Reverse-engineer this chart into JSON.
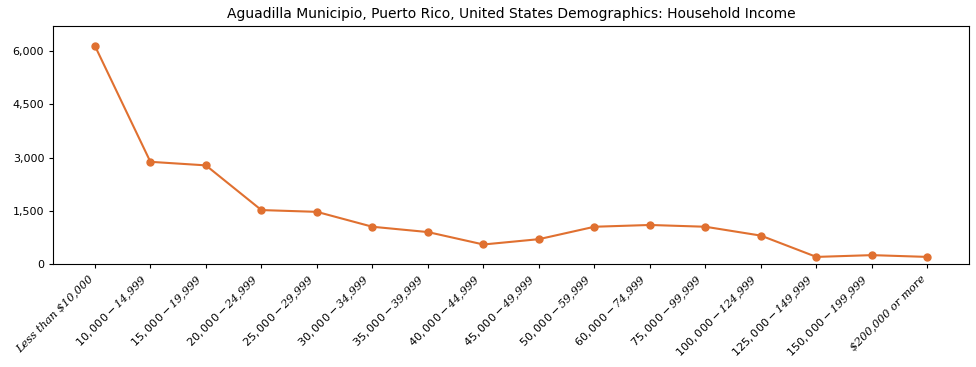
{
  "title": "Aguadilla Municipio, Puerto Rico, United States Demographics: Household Income",
  "categories": [
    "Less than $10,000",
    "$10,000 - $14,999",
    "$15,000 - $19,999",
    "$20,000 - $24,999",
    "$25,000 - $29,999",
    "$30,000 - $34,999",
    "$35,000 - $39,999",
    "$40,000 - $44,999",
    "$45,000 - $49,999",
    "$50,000 - $59,999",
    "$60,000 - $74,999",
    "$75,000 - $99,999",
    "$100,000 - $124,999",
    "$125,000 - $149,999",
    "$150,000 - $199,999",
    "$200,000 or more"
  ],
  "values": [
    6150,
    2880,
    2780,
    1520,
    1470,
    1050,
    900,
    550,
    700,
    1050,
    1100,
    1050,
    800,
    200,
    250,
    200
  ],
  "line_color": "#e07030",
  "marker": "o",
  "marker_size": 5,
  "line_width": 1.5,
  "ylim": [
    0,
    6700
  ],
  "yticks": [
    0,
    1500,
    3000,
    4500,
    6000
  ],
  "background_color": "#ffffff",
  "title_fontsize": 10,
  "tick_fontsize": 8,
  "ylabel_fontsize": 8
}
